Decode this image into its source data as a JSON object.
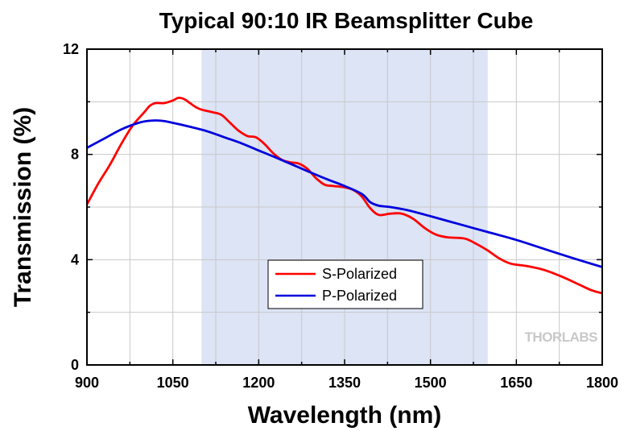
{
  "chart_data": {
    "type": "line",
    "title": "Typical 90:10 IR Beamsplitter Cube",
    "xlabel": "Wavelength (nm)",
    "ylabel": "Transmission (%)",
    "xlim": [
      900,
      1800
    ],
    "ylim": [
      0,
      12
    ],
    "x_ticks": [
      900,
      1050,
      1200,
      1350,
      1500,
      1650,
      1800
    ],
    "y_ticks": [
      0,
      4,
      8,
      12
    ],
    "grid": true,
    "shaded_region": {
      "x_start": 1100,
      "x_end": 1600,
      "color": "#dce4f5"
    },
    "legend_position": "lower-middle",
    "watermark": "THORLABS",
    "series": [
      {
        "name": "S-Polarized",
        "color": "#ff0000",
        "points": [
          [
            900,
            6.1
          ],
          [
            920,
            6.9
          ],
          [
            940,
            7.6
          ],
          [
            960,
            8.4
          ],
          [
            980,
            9.1
          ],
          [
            1000,
            9.6
          ],
          [
            1010,
            9.85
          ],
          [
            1020,
            9.95
          ],
          [
            1035,
            9.95
          ],
          [
            1050,
            10.05
          ],
          [
            1060,
            10.15
          ],
          [
            1070,
            10.1
          ],
          [
            1080,
            9.95
          ],
          [
            1090,
            9.8
          ],
          [
            1100,
            9.7
          ],
          [
            1120,
            9.6
          ],
          [
            1135,
            9.5
          ],
          [
            1150,
            9.2
          ],
          [
            1165,
            8.9
          ],
          [
            1180,
            8.7
          ],
          [
            1195,
            8.65
          ],
          [
            1210,
            8.4
          ],
          [
            1225,
            8.05
          ],
          [
            1240,
            7.8
          ],
          [
            1255,
            7.7
          ],
          [
            1270,
            7.65
          ],
          [
            1285,
            7.45
          ],
          [
            1300,
            7.1
          ],
          [
            1315,
            6.85
          ],
          [
            1330,
            6.8
          ],
          [
            1350,
            6.75
          ],
          [
            1365,
            6.65
          ],
          [
            1380,
            6.4
          ],
          [
            1395,
            5.95
          ],
          [
            1410,
            5.7
          ],
          [
            1430,
            5.75
          ],
          [
            1450,
            5.75
          ],
          [
            1470,
            5.55
          ],
          [
            1490,
            5.2
          ],
          [
            1510,
            4.95
          ],
          [
            1530,
            4.85
          ],
          [
            1560,
            4.8
          ],
          [
            1580,
            4.6
          ],
          [
            1600,
            4.35
          ],
          [
            1620,
            4.05
          ],
          [
            1640,
            3.85
          ],
          [
            1670,
            3.75
          ],
          [
            1700,
            3.6
          ],
          [
            1730,
            3.35
          ],
          [
            1760,
            3.05
          ],
          [
            1780,
            2.85
          ],
          [
            1800,
            2.72
          ]
        ]
      },
      {
        "name": "P-Polarized",
        "color": "#0000dd",
        "points": [
          [
            900,
            8.25
          ],
          [
            930,
            8.6
          ],
          [
            960,
            8.95
          ],
          [
            990,
            9.2
          ],
          [
            1010,
            9.28
          ],
          [
            1030,
            9.28
          ],
          [
            1050,
            9.2
          ],
          [
            1080,
            9.05
          ],
          [
            1110,
            8.88
          ],
          [
            1140,
            8.65
          ],
          [
            1170,
            8.42
          ],
          [
            1200,
            8.15
          ],
          [
            1230,
            7.88
          ],
          [
            1260,
            7.6
          ],
          [
            1290,
            7.32
          ],
          [
            1320,
            7.05
          ],
          [
            1350,
            6.8
          ],
          [
            1380,
            6.5
          ],
          [
            1395,
            6.18
          ],
          [
            1410,
            6.05
          ],
          [
            1430,
            6.0
          ],
          [
            1460,
            5.88
          ],
          [
            1500,
            5.65
          ],
          [
            1550,
            5.35
          ],
          [
            1600,
            5.05
          ],
          [
            1650,
            4.75
          ],
          [
            1700,
            4.4
          ],
          [
            1750,
            4.05
          ],
          [
            1800,
            3.72
          ]
        ]
      }
    ]
  }
}
